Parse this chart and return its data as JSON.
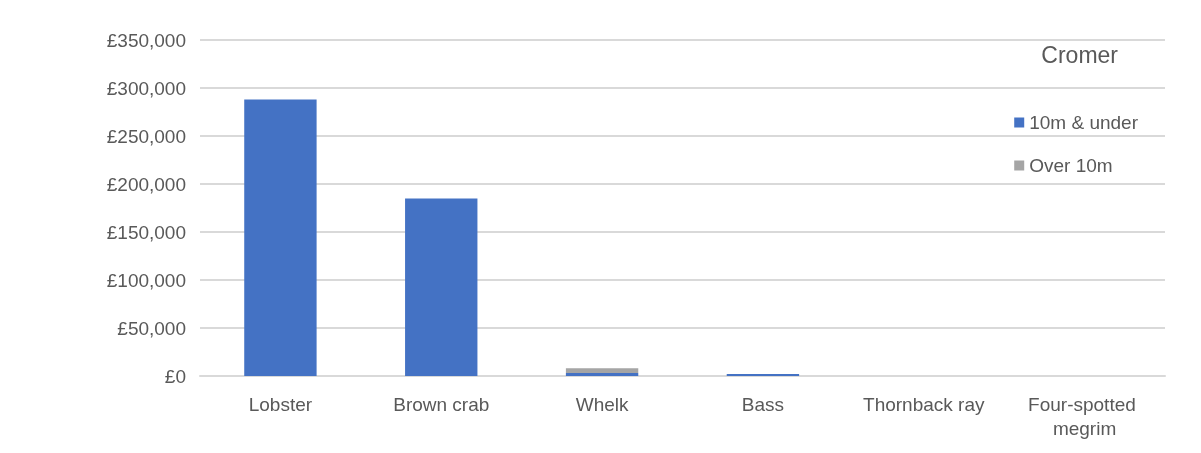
{
  "chart_data": {
    "type": "bar",
    "title": "Cromer",
    "stacked": true,
    "categories": [
      "Lobster",
      "Brown crab",
      "Whelk",
      "Bass",
      "Thornback ray",
      "Four-spotted megrim"
    ],
    "series": [
      {
        "name": "10m & under",
        "color": "#4472c4",
        "values": [
          288000,
          185000,
          3000,
          2000,
          0,
          0
        ]
      },
      {
        "name": "Over 10m",
        "color": "#a5a5a5",
        "values": [
          0,
          0,
          5000,
          0,
          0,
          0
        ]
      }
    ],
    "ylim": [
      0,
      350000
    ],
    "yticks": [
      {
        "value": 0,
        "label": "£0"
      },
      {
        "value": 50000,
        "label": "£50,000"
      },
      {
        "value": 100000,
        "label": "£100,000"
      },
      {
        "value": 150000,
        "label": "£150,000"
      },
      {
        "value": 200000,
        "label": "£200,000"
      },
      {
        "value": 250000,
        "label": "£250,000"
      },
      {
        "value": 300000,
        "label": "£300,000"
      },
      {
        "value": 350000,
        "label": "£350,000"
      }
    ],
    "grid": "y",
    "legend": "top right"
  }
}
